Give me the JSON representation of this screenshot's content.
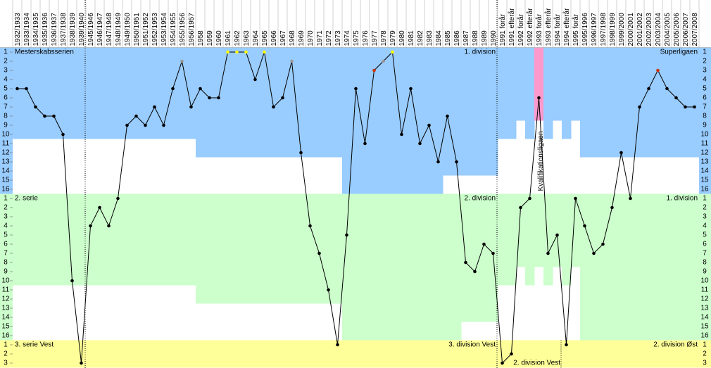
{
  "chart_data": {
    "type": "line",
    "categories": [
      "1932/1933",
      "1933/1934",
      "1934/1935",
      "1935/1936",
      "1936/1937",
      "1937/1938",
      "1938/1939",
      "1939/1940",
      "1945/1946",
      "1946/1947",
      "1947/1948",
      "1948/1949",
      "1949/1950",
      "1950/1951",
      "1951/1952",
      "1952/1953",
      "1953/1954",
      "1954/1955",
      "1955/1956",
      "1956/1957",
      "1958",
      "1959",
      "1960",
      "1961",
      "1962",
      "1963",
      "1964",
      "1965",
      "1966",
      "1967",
      "1968",
      "1969",
      "1970",
      "1971",
      "1972",
      "1973",
      "1974",
      "1975",
      "1976",
      "1977",
      "1978",
      "1979",
      "1980",
      "1981",
      "1982",
      "1983",
      "1984",
      "1985",
      "1986",
      "1987",
      "1988",
      "1989",
      "1990",
      "1991 forår",
      "1991 efterår",
      "1992 forår",
      "1992 efterår",
      "1993 forår",
      "1993 efterår",
      "1994 forår",
      "1994 efterår",
      "1995 forår",
      "1995/1996",
      "1996/1997",
      "1997/1998",
      "1998/1999",
      "1999/2000",
      "2000/2001",
      "2001/2002",
      "2002/2003",
      "2003/2004",
      "2004/2005",
      "2005/2006",
      "2006/2007",
      "2007/2008"
    ],
    "values": [
      5,
      5,
      7,
      8,
      8,
      10,
      26,
      35,
      20,
      18,
      20,
      17,
      9,
      8,
      9,
      7,
      9,
      5,
      2,
      7,
      5,
      6,
      6,
      1,
      1,
      1,
      4,
      1,
      7,
      6,
      2,
      12,
      20,
      23,
      27,
      33,
      21,
      5,
      11,
      3,
      2,
      1,
      10,
      5,
      11,
      9,
      13,
      8,
      13,
      24,
      25,
      22,
      23,
      35,
      34,
      18,
      17,
      6,
      23,
      21,
      33,
      17,
      20,
      23,
      22,
      18,
      12,
      17,
      7,
      5,
      3,
      5,
      6,
      7,
      7
    ],
    "line_color": "#000000",
    "point_colors": [
      "#000000",
      "#000000",
      "#000000",
      "#000000",
      "#000000",
      "#000000",
      "#000000",
      "#000000",
      "#000000",
      "#000000",
      "#000000",
      "#000000",
      "#000000",
      "#000000",
      "#000000",
      "#000000",
      "#000000",
      "#000000",
      "#999999",
      "#000000",
      "#000000",
      "#000000",
      "#000000",
      "#ffff00",
      "#ffff00",
      "#ffff00",
      "#000000",
      "#ffff00",
      "#000000",
      "#000000",
      "#999999",
      "#000000",
      "#000000",
      "#000000",
      "#000000",
      "#000000",
      "#000000",
      "#000000",
      "#000000",
      "#cc3300",
      "#999999",
      "#ffff00",
      "#000000",
      "#000000",
      "#000000",
      "#000000",
      "#000000",
      "#000000",
      "#000000",
      "#000000",
      "#000000",
      "#000000",
      "#000000",
      "#000000",
      "#000000",
      "#000000",
      "#000000",
      "#000000",
      "#000000",
      "#000000",
      "#000000",
      "#000000",
      "#000000",
      "#000000",
      "#000000",
      "#000000",
      "#000000",
      "#000000",
      "#000000",
      "#000000",
      "#cc3300",
      "#000000",
      "#000000",
      "#000000",
      "#000000"
    ],
    "ylim": [
      0.5,
      35.5
    ],
    "yticks": [
      {
        "value": 1,
        "label": "1"
      },
      {
        "value": 2,
        "label": "2"
      },
      {
        "value": 3,
        "label": "3"
      },
      {
        "value": 4,
        "label": "4"
      },
      {
        "value": 5,
        "label": "5"
      },
      {
        "value": 6,
        "label": "6"
      },
      {
        "value": 7,
        "label": "7"
      },
      {
        "value": 8,
        "label": "8"
      },
      {
        "value": 9,
        "label": "9"
      },
      {
        "value": 10,
        "label": "10"
      },
      {
        "value": 11,
        "label": "11"
      },
      {
        "value": 12,
        "label": "12"
      },
      {
        "value": 13,
        "label": "13"
      },
      {
        "value": 14,
        "label": "14"
      },
      {
        "value": 15,
        "label": "15"
      },
      {
        "value": 16,
        "label": "16"
      },
      {
        "value": 17,
        "label": "1"
      },
      {
        "value": 18,
        "label": "2"
      },
      {
        "value": 19,
        "label": "3"
      },
      {
        "value": 20,
        "label": "4"
      },
      {
        "value": 21,
        "label": "5"
      },
      {
        "value": 22,
        "label": "6"
      },
      {
        "value": 23,
        "label": "7"
      },
      {
        "value": 24,
        "label": "8"
      },
      {
        "value": 25,
        "label": "9"
      },
      {
        "value": 26,
        "label": "10"
      },
      {
        "value": 27,
        "label": "11"
      },
      {
        "value": 28,
        "label": "12"
      },
      {
        "value": 29,
        "label": "13"
      },
      {
        "value": 30,
        "label": "14"
      },
      {
        "value": 31,
        "label": "15"
      },
      {
        "value": 32,
        "label": "16"
      },
      {
        "value": 33,
        "label": "1"
      },
      {
        "value": 34,
        "label": "2"
      },
      {
        "value": 35,
        "label": "3"
      }
    ],
    "levels": [
      {
        "color": "#99ccff",
        "rows": 16,
        "sizes": [
          10,
          10,
          10,
          10,
          10,
          10,
          10,
          10,
          10,
          10,
          10,
          10,
          10,
          10,
          10,
          10,
          10,
          10,
          10,
          10,
          12,
          12,
          12,
          12,
          12,
          12,
          12,
          12,
          12,
          12,
          12,
          12,
          12,
          12,
          12,
          12,
          16,
          16,
          16,
          16,
          16,
          16,
          16,
          16,
          16,
          16,
          16,
          14,
          14,
          14,
          14,
          14,
          14,
          10,
          10,
          8,
          10,
          8,
          10,
          8,
          10,
          8,
          12,
          12,
          12,
          12,
          12,
          12,
          12,
          12,
          12,
          12,
          12,
          12,
          12
        ],
        "highlight": {
          "season": "1993 forår",
          "color": "#ff99cc",
          "label": "Kvalifikationsligaen"
        }
      },
      {
        "color": "#ccffcc",
        "rows": 16,
        "sizes": [
          10,
          10,
          10,
          10,
          10,
          10,
          10,
          10,
          10,
          10,
          10,
          10,
          10,
          10,
          10,
          10,
          10,
          10,
          10,
          10,
          12,
          12,
          12,
          12,
          12,
          12,
          12,
          12,
          12,
          12,
          12,
          12,
          12,
          12,
          12,
          12,
          16,
          16,
          16,
          16,
          16,
          16,
          16,
          16,
          16,
          16,
          16,
          16,
          16,
          14,
          14,
          14,
          14,
          10,
          10,
          8,
          10,
          8,
          10,
          8,
          10,
          8,
          16,
          16,
          16,
          16,
          16,
          16,
          16,
          16,
          16,
          16,
          16,
          16,
          16
        ]
      },
      {
        "color": "#ffff99",
        "rows": 3
      }
    ],
    "division_labels": [
      "Mesterskabsserien",
      "1. division",
      "Superligaen",
      "2. serie",
      "2. division",
      "1. division",
      "3. serie Vest",
      "3. division Vest",
      "2. division Vest",
      "2. division Øst"
    ]
  }
}
